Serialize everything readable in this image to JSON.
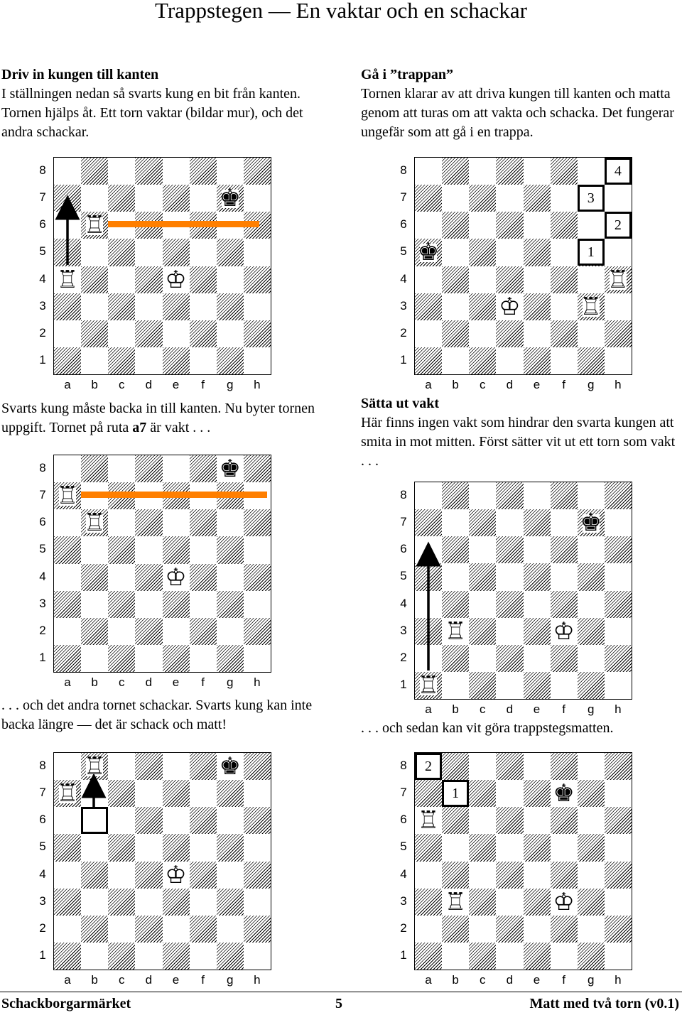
{
  "title": "Trappstegen — En vaktar och en schackar",
  "sections": {
    "drive_heading": "Driv in kungen till kanten",
    "drive_text": "I ställningen nedan så svarts kung en bit från kanten. Tornen hjälps åt. Ett torn vaktar (bildar mur), och det andra schackar.",
    "stairs_heading": "Gå i ”trappan”",
    "stairs_text": "Tornen klarar av att driva kungen till kanten och matta genom att turas om att vakta och schacka. Det fungerar ungefär som att gå i en trappa.",
    "caption_1": "Svarts kung måste backa in till kanten. Nu byter tornen uppgift. Tornet på ruta ",
    "caption_1_bold": "a7",
    "caption_1_tail": " är vakt . . .",
    "caption_2": ". . . och det andra tornet schackar. Svarts kung kan inte backa längre — det är schack och matt!",
    "guard_heading": "Sätta ut vakt",
    "guard_text": "Här finns ingen vakt som hindrar den svarta kungen att smita in mot mitten. Först sätter vit ut ett torn som vakt . . .",
    "caption_3": ". . . och sedan kan vit göra trappstegsmatten."
  },
  "board_labels": {
    "files": [
      "a",
      "b",
      "c",
      "d",
      "e",
      "f",
      "g",
      "h"
    ],
    "ranks": [
      "8",
      "7",
      "6",
      "5",
      "4",
      "3",
      "2",
      "1"
    ]
  },
  "pieces": {
    "white_rook": "♖",
    "white_king": "♔",
    "black_king": "♚"
  },
  "boards": [
    {
      "id": "board-1",
      "pieces": [
        {
          "type": "black_king",
          "sq": "g7"
        },
        {
          "type": "white_rook",
          "sq": "b6"
        },
        {
          "type": "white_rook",
          "sq": "a4"
        },
        {
          "type": "white_king",
          "sq": "e4"
        }
      ],
      "steps": []
    },
    {
      "id": "board-2",
      "pieces": [
        {
          "type": "black_king",
          "sq": "a5"
        },
        {
          "type": "white_rook",
          "sq": "h4"
        },
        {
          "type": "white_king",
          "sq": "d3"
        },
        {
          "type": "white_rook",
          "sq": "g3"
        }
      ],
      "steps": [
        {
          "sq": "h8",
          "label": "4"
        },
        {
          "sq": "g7",
          "label": "3"
        },
        {
          "sq": "h6",
          "label": "2"
        },
        {
          "sq": "g5",
          "label": "1"
        }
      ]
    },
    {
      "id": "board-3",
      "pieces": [
        {
          "type": "black_king",
          "sq": "g8"
        },
        {
          "type": "white_rook",
          "sq": "a7"
        },
        {
          "type": "white_rook",
          "sq": "b6"
        },
        {
          "type": "white_king",
          "sq": "e4"
        }
      ],
      "steps": []
    },
    {
      "id": "board-4",
      "pieces": [
        {
          "type": "black_king",
          "sq": "g7"
        },
        {
          "type": "white_rook",
          "sq": "b3"
        },
        {
          "type": "white_king",
          "sq": "f3"
        },
        {
          "type": "white_rook",
          "sq": "a1"
        }
      ],
      "steps": []
    },
    {
      "id": "board-5",
      "pieces": [
        {
          "type": "white_rook",
          "sq": "b8"
        },
        {
          "type": "black_king",
          "sq": "g8"
        },
        {
          "type": "white_rook",
          "sq": "a7"
        },
        {
          "type": "white_king",
          "sq": "e4"
        }
      ],
      "steps": [
        {
          "sq": "b6",
          "label": ""
        }
      ]
    },
    {
      "id": "board-6",
      "pieces": [
        {
          "type": "black_king",
          "sq": "f7"
        },
        {
          "type": "white_rook",
          "sq": "a6"
        },
        {
          "type": "white_rook",
          "sq": "b3"
        },
        {
          "type": "white_king",
          "sq": "f3"
        }
      ],
      "steps": [
        {
          "sq": "a8",
          "label": "2"
        },
        {
          "sq": "b7",
          "label": "1"
        }
      ]
    }
  ],
  "footer": {
    "left": "Schackborgarmärket",
    "center": "5",
    "right": "Matt med två torn (v0.1)"
  }
}
